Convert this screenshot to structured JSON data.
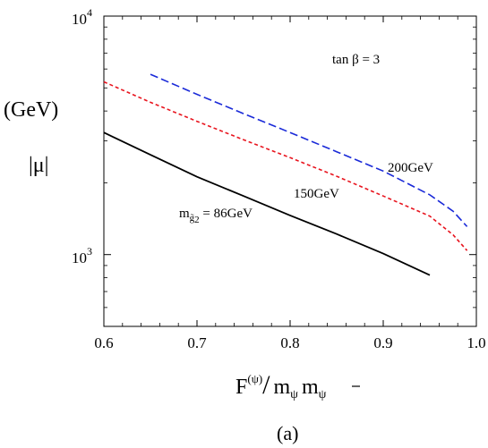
{
  "chart_data": {
    "type": "line",
    "x_range": [
      0.6,
      1.0
    ],
    "y_range": [
      500,
      10000
    ],
    "y_scale": "log",
    "x_ticks": [
      "0.6",
      "0.7",
      "0.8",
      "0.9",
      "1.0"
    ],
    "y_ticks": [
      {
        "value": 1000,
        "base": "10",
        "exp": "3"
      },
      {
        "value": 10000,
        "base": "10",
        "exp": "4"
      }
    ],
    "ylabel_unit": "(GeV)",
    "ylabel_symbol": "|μ|",
    "xlabel": {
      "main": "F",
      "sup": "(ψ)",
      "slash": "/",
      "m1": "m",
      "s1": "ψ",
      "m2": "m",
      "s2": "ψ"
    },
    "annotation_tan": "tan β = 3",
    "panel_label": "(a)",
    "series": [
      {
        "label": "m",
        "label_sub": "g̃",
        "label_sub2": "2",
        "label_rest": " = 86GeV",
        "color": "#000000",
        "dash": "none",
        "x": [
          0.6,
          0.65,
          0.7,
          0.75,
          0.8,
          0.85,
          0.9,
          0.95
        ],
        "y": [
          3250,
          2620,
          2120,
          1760,
          1460,
          1220,
          1010,
          820
        ]
      },
      {
        "label": "150GeV",
        "color": "#e8141e",
        "dash": "4 3",
        "x": [
          0.6,
          0.65,
          0.7,
          0.75,
          0.8,
          0.85,
          0.9,
          0.95,
          0.975,
          0.99
        ],
        "y": [
          5300,
          4350,
          3620,
          3030,
          2550,
          2130,
          1760,
          1450,
          1210,
          1040
        ]
      },
      {
        "label": "200GeV",
        "color": "#1a2ad8",
        "dash": "9 4",
        "x": [
          0.65,
          0.7,
          0.75,
          0.8,
          0.85,
          0.9,
          0.95,
          0.975,
          0.99
        ],
        "y": [
          5700,
          4700,
          3900,
          3250,
          2700,
          2240,
          1780,
          1520,
          1310
        ]
      }
    ]
  }
}
